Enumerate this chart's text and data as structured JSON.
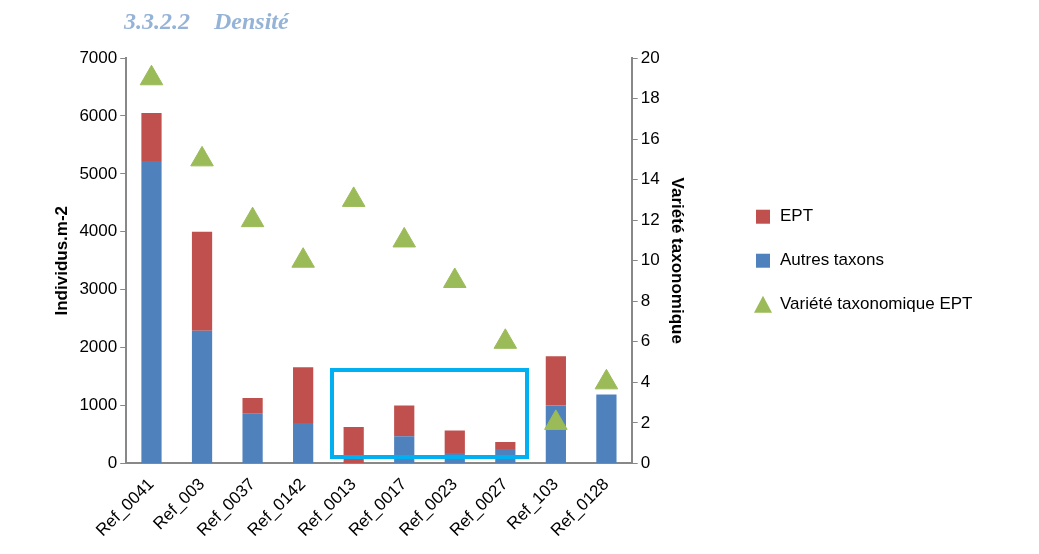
{
  "chart_data": {
    "type": "bar",
    "title": "3.3.2.2    Densité",
    "ylabel": "Individus.m-2",
    "y2label": "Variété taxonomique",
    "categories": [
      "Ref_0041",
      "Ref_003",
      "Ref_0037",
      "Ref_0142",
      "Ref_0013",
      "Ref_0017",
      "Ref_0023",
      "Ref_0027",
      "Ref_103",
      "Ref_0128"
    ],
    "stacked": true,
    "grid": false,
    "legend": "right",
    "ylim": [
      0,
      7000
    ],
    "yticks": [
      0,
      1000,
      2000,
      3000,
      4000,
      5000,
      6000,
      7000
    ],
    "y2lim": [
      0,
      20
    ],
    "y2ticks": [
      0,
      2,
      4,
      6,
      8,
      10,
      12,
      14,
      16,
      18,
      20
    ],
    "series": [
      {
        "name": "Autres taxons",
        "color": "#4f81bd",
        "values": [
          5220,
          2290,
          860,
          700,
          null,
          470,
          180,
          250,
          1000,
          1190
        ]
      },
      {
        "name": "EPT",
        "color": "#c0504d",
        "values": [
          830,
          1710,
          270,
          960,
          630,
          530,
          390,
          120,
          850,
          0
        ]
      },
      {
        "name": "Variété taxonomique EPT",
        "type": "scatter",
        "axis": "y2",
        "marker": "triangle",
        "color": "#9bbb59",
        "values": [
          19,
          15,
          12,
          10,
          13,
          11,
          9,
          6,
          2,
          4
        ]
      }
    ]
  }
}
